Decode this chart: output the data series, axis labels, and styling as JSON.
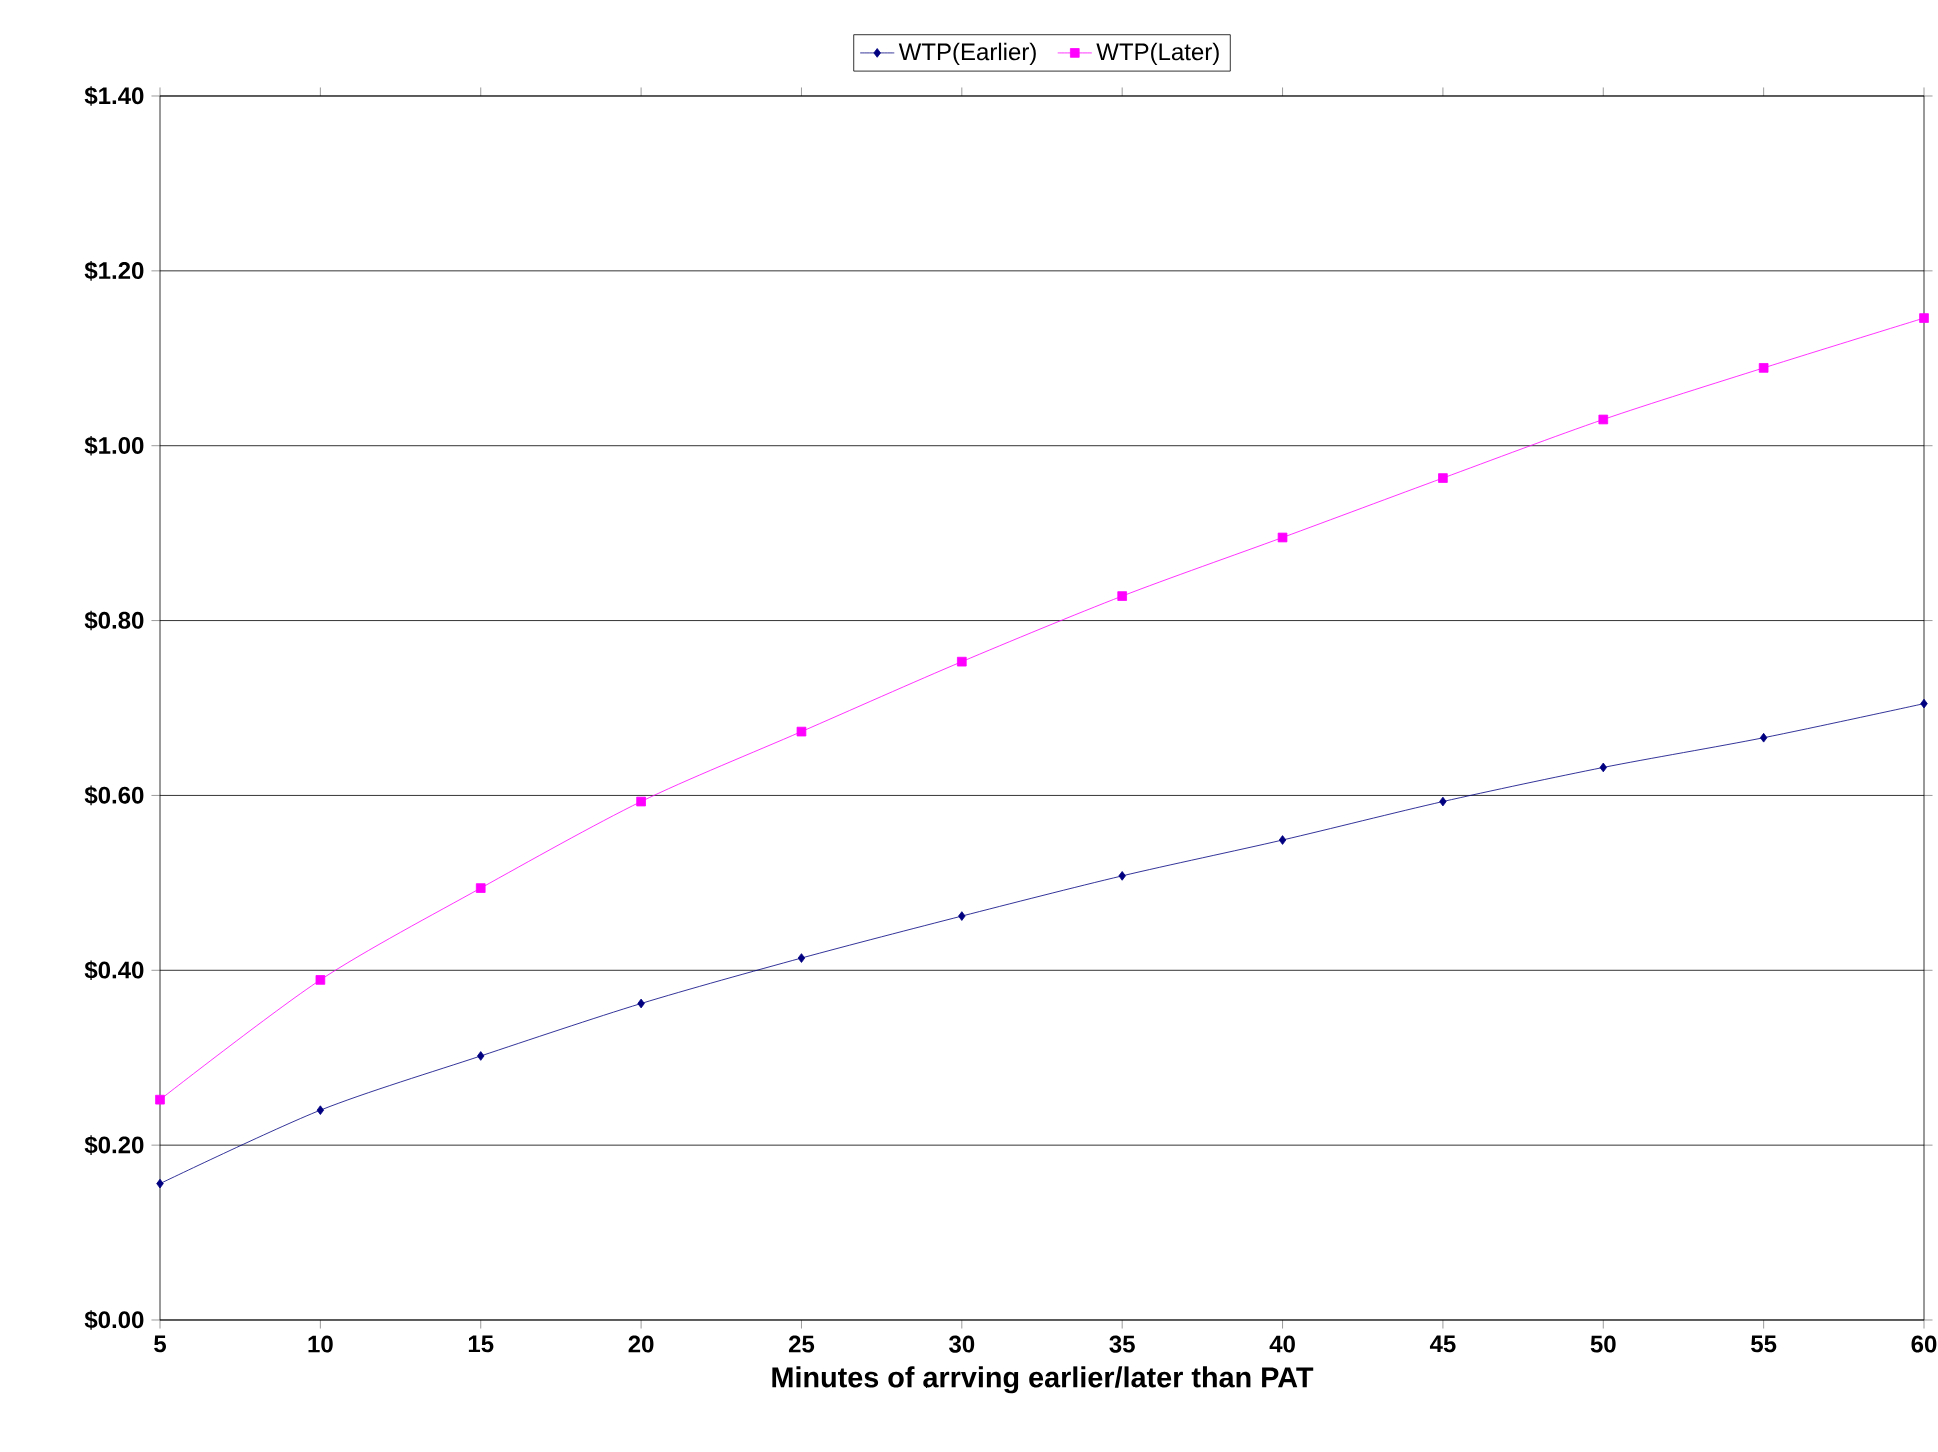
{
  "chart_data": {
    "type": "line",
    "xlabel": "Minutes of arrving earlier/later than PAT",
    "x": [
      5,
      10,
      15,
      20,
      25,
      30,
      35,
      40,
      45,
      50,
      55,
      60
    ],
    "series": [
      {
        "name": "WTP(Earlier)",
        "color": "#000080",
        "marker": "diamond",
        "values": [
          0.156,
          0.24,
          0.302,
          0.362,
          0.414,
          0.462,
          0.508,
          0.549,
          0.593,
          0.632,
          0.666,
          0.705
        ]
      },
      {
        "name": "WTP(Later)",
        "color": "#ff00ff",
        "marker": "square",
        "values": [
          0.252,
          0.389,
          0.494,
          0.593,
          0.673,
          0.753,
          0.828,
          0.895,
          0.963,
          1.03,
          1.089,
          1.146
        ]
      }
    ],
    "xlim": [
      5,
      60
    ],
    "xticks": [
      5,
      10,
      15,
      20,
      25,
      30,
      35,
      40,
      45,
      50,
      55,
      60
    ],
    "ylim": [
      0,
      1.4
    ],
    "yticks": [
      {
        "value": 0,
        "label": "$0.00"
      },
      {
        "value": 0.2,
        "label": "$0.20"
      },
      {
        "value": 0.4,
        "label": "$0.40"
      },
      {
        "value": 0.6,
        "label": "$0.60"
      },
      {
        "value": 0.8,
        "label": "$0.80"
      },
      {
        "value": 1.0,
        "label": "$1.00"
      },
      {
        "value": 1.2,
        "label": "$1.20"
      },
      {
        "value": 1.4,
        "label": "$1.40"
      }
    ],
    "grid": "y",
    "legend": "top",
    "line_style": "solid"
  }
}
